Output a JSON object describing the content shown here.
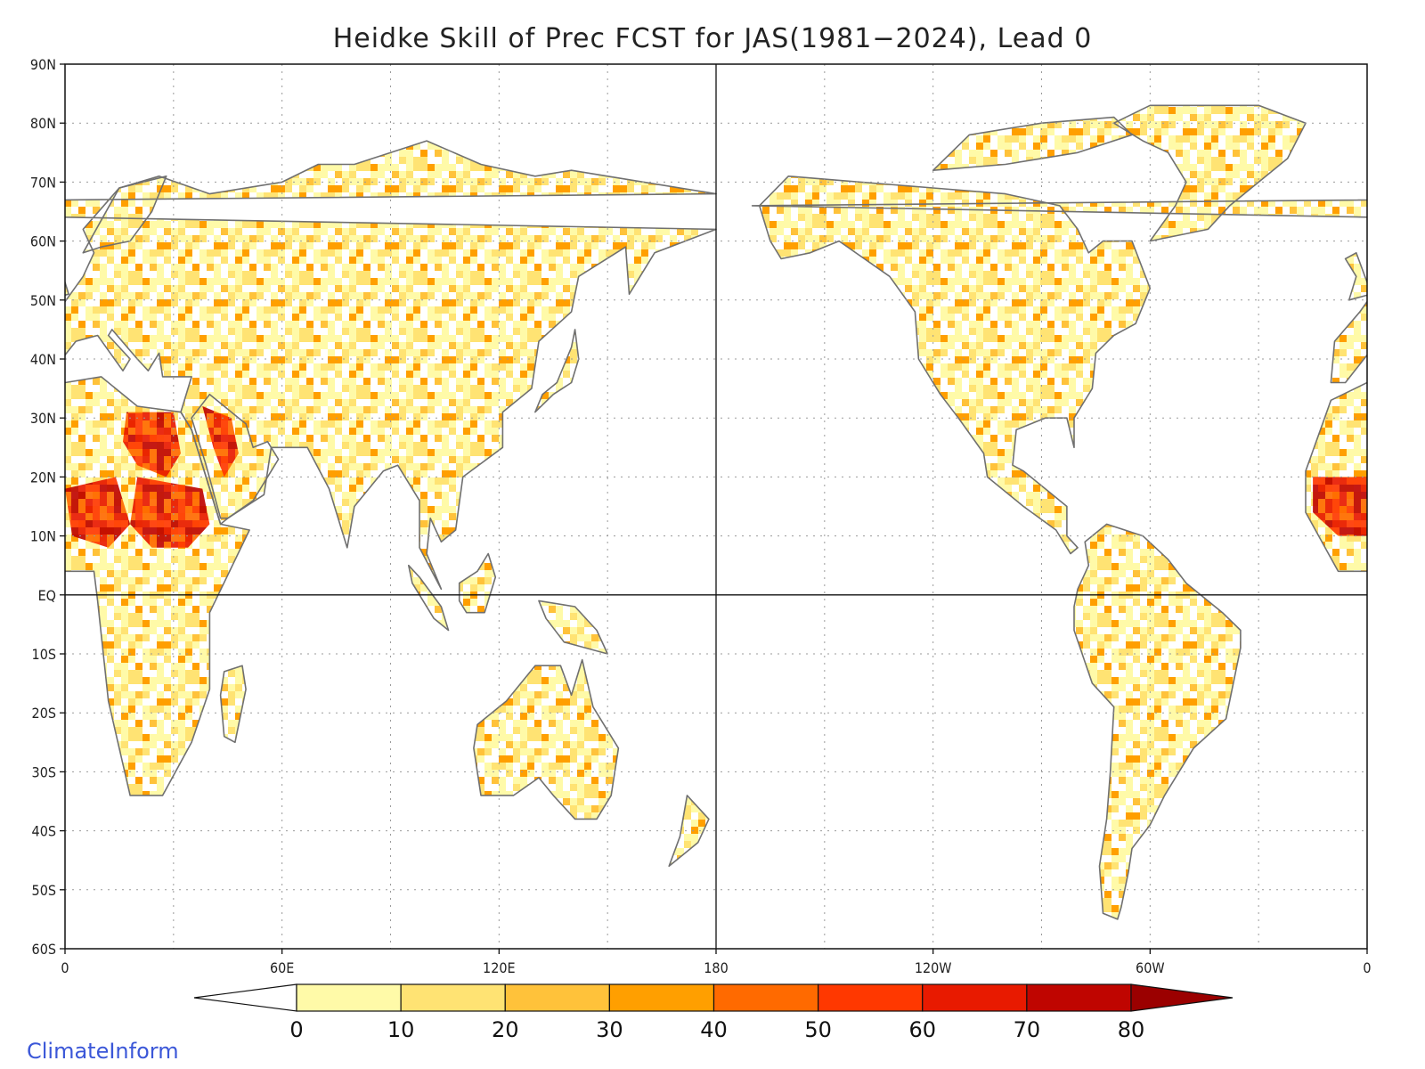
{
  "title": "Heidke Skill of Prec FCST for JAS(1981−2024), Lead 0",
  "credit": "ClimateInform",
  "map": {
    "lat_labels": [
      "90N",
      "80N",
      "70N",
      "60N",
      "50N",
      "40N",
      "30N",
      "20N",
      "10N",
      "EQ",
      "10S",
      "20S",
      "30S",
      "40S",
      "50S",
      "60S"
    ],
    "lon_labels": [
      "0",
      "60E",
      "120E",
      "180",
      "120W",
      "60W",
      "0"
    ],
    "lat_range": [
      -60,
      90
    ],
    "lon_range": [
      0,
      360
    ],
    "grid": "dotted",
    "colors": {
      "land_outline": "#707070",
      "lakes": "#000000",
      "grid": "#9a9a9a"
    }
  },
  "colorbar": {
    "ticks": [
      "0",
      "10",
      "20",
      "30",
      "40",
      "50",
      "60",
      "70",
      "80"
    ],
    "colors": [
      "#fffaa8",
      "#ffe373",
      "#ffc23a",
      "#ff9f00",
      "#ff6a00",
      "#ff3800",
      "#e81a00",
      "#bf0500",
      "#9b0000"
    ],
    "under_color": "#ffffff",
    "over_color": "#9b0000"
  }
}
